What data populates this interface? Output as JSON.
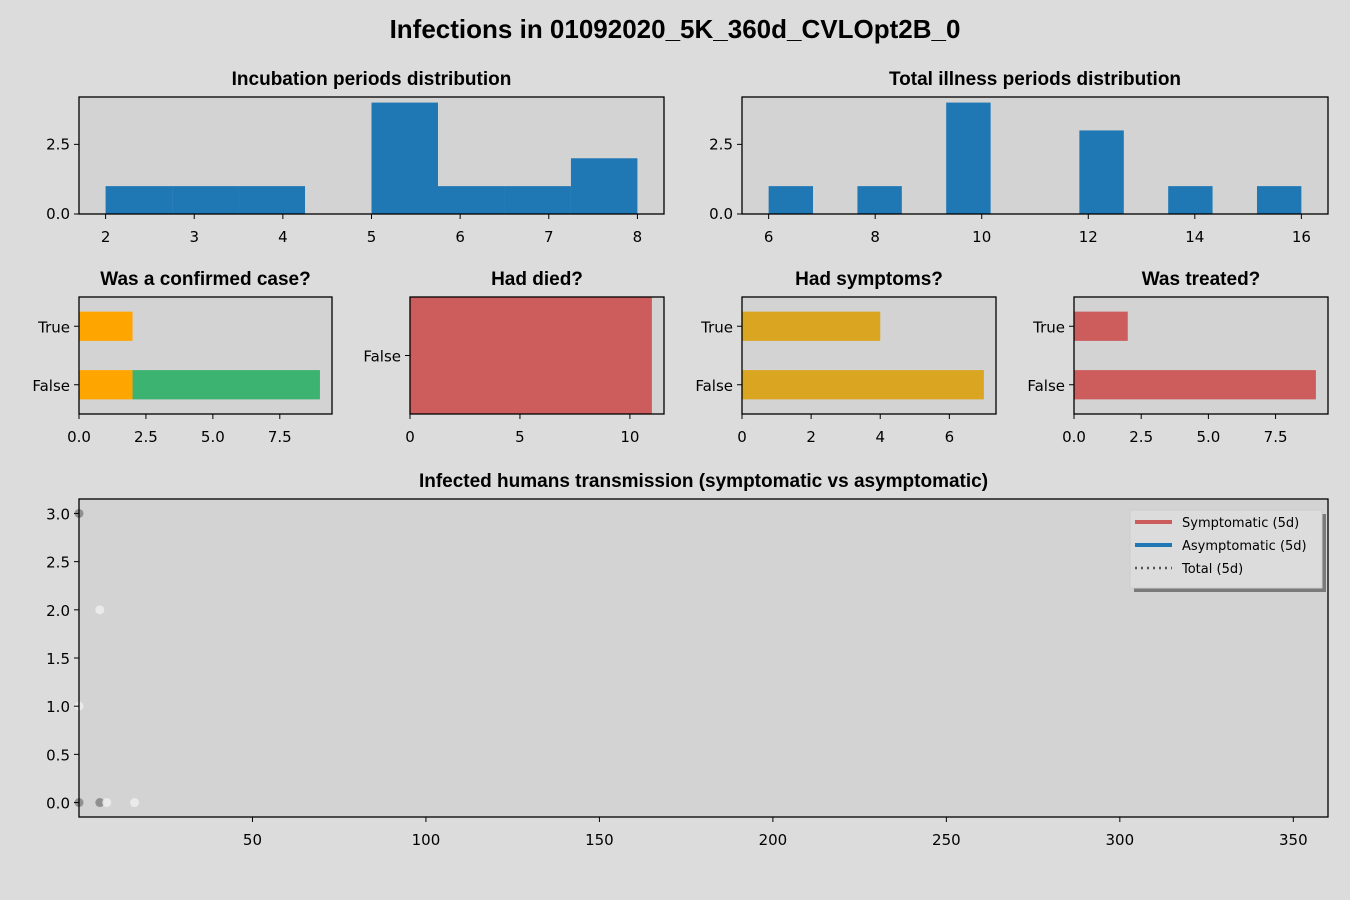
{
  "figure": {
    "suptitle": "Infections in 01092020_5K_360d_CVLOpt2B_0",
    "background": "#dcdcdc",
    "axes_bg": "#d3d3d3"
  },
  "chart_data": [
    {
      "id": "incubation",
      "type": "bar",
      "title": "Incubation periods distribution",
      "xlim": [
        1.7,
        8.3
      ],
      "ylim": [
        0,
        4.2
      ],
      "xticks": [
        2,
        3,
        4,
        5,
        6,
        7,
        8
      ],
      "yticks": [
        0.0,
        2.5
      ],
      "ytick_labels": [
        "0.0",
        "2.5"
      ],
      "color": "#1f77b4",
      "bins": [
        {
          "x0": 2.0,
          "x1": 2.75,
          "count": 1
        },
        {
          "x0": 2.75,
          "x1": 3.5,
          "count": 1
        },
        {
          "x0": 3.5,
          "x1": 4.25,
          "count": 1
        },
        {
          "x0": 4.25,
          "x1": 5.0,
          "count": 0
        },
        {
          "x0": 5.0,
          "x1": 5.75,
          "count": 4
        },
        {
          "x0": 5.75,
          "x1": 6.5,
          "count": 1
        },
        {
          "x0": 6.5,
          "x1": 7.25,
          "count": 1
        },
        {
          "x0": 7.25,
          "x1": 8.0,
          "count": 2
        }
      ]
    },
    {
      "id": "illness",
      "type": "bar",
      "title": "Total illness periods distribution",
      "xlim": [
        5.5,
        16.5
      ],
      "ylim": [
        0,
        4.2
      ],
      "xticks": [
        6,
        8,
        10,
        12,
        14,
        16
      ],
      "yticks": [
        0.0,
        2.5
      ],
      "ytick_labels": [
        "0.0",
        "2.5"
      ],
      "color": "#1f77b4",
      "bins": [
        {
          "x0": 6.0,
          "x1": 6.833,
          "count": 1
        },
        {
          "x0": 7.667,
          "x1": 8.5,
          "count": 1
        },
        {
          "x0": 9.333,
          "x1": 10.167,
          "count": 4
        },
        {
          "x0": 11.833,
          "x1": 12.667,
          "count": 3
        },
        {
          "x0": 13.5,
          "x1": 14.333,
          "count": 1
        },
        {
          "x0": 15.167,
          "x1": 16.0,
          "count": 1
        }
      ]
    },
    {
      "id": "confirmed",
      "type": "bar",
      "orientation": "horizontal",
      "stacked": true,
      "title": "Was a confirmed case?",
      "categories": [
        "True",
        "False"
      ],
      "xlim": [
        0,
        9.45
      ],
      "xticks": [
        0.0,
        2.5,
        5.0,
        7.5
      ],
      "xtick_labels": [
        "0.0",
        "2.5",
        "5.0",
        "7.5"
      ],
      "series": [
        {
          "values": [
            2,
            2
          ],
          "color": "#ffa500"
        },
        {
          "values": [
            0,
            7
          ],
          "color": "#3cb371"
        }
      ]
    },
    {
      "id": "died",
      "type": "bar",
      "orientation": "horizontal",
      "title": "Had died?",
      "categories": [
        "False"
      ],
      "xlim": [
        0,
        11.55
      ],
      "xticks": [
        0,
        5,
        10
      ],
      "xtick_labels": [
        "0",
        "5",
        "10"
      ],
      "series": [
        {
          "values": [
            11
          ],
          "color": "#cd5c5c"
        }
      ]
    },
    {
      "id": "symptoms",
      "type": "bar",
      "orientation": "horizontal",
      "title": "Had symptoms?",
      "categories": [
        "True",
        "False"
      ],
      "xlim": [
        0,
        7.35
      ],
      "xticks": [
        0,
        2,
        4,
        6
      ],
      "xtick_labels": [
        "0",
        "2",
        "4",
        "6"
      ],
      "series": [
        {
          "values": [
            4,
            7
          ],
          "color": "#daa520"
        }
      ]
    },
    {
      "id": "treated",
      "type": "bar",
      "orientation": "horizontal",
      "title": "Was treated?",
      "categories": [
        "True",
        "False"
      ],
      "xlim": [
        0,
        9.45
      ],
      "xticks": [
        0.0,
        2.5,
        5.0,
        7.5
      ],
      "xtick_labels": [
        "0.0",
        "2.5",
        "5.0",
        "7.5"
      ],
      "series": [
        {
          "values": [
            2,
            9
          ],
          "color": "#cd5c5c"
        }
      ]
    },
    {
      "id": "transmission",
      "type": "scatter",
      "title": "Infected humans transmission (symptomatic vs asymptomatic)",
      "xlim": [
        0,
        360
      ],
      "ylim": [
        -0.15,
        3.15
      ],
      "xticks": [
        50,
        100,
        150,
        200,
        250,
        300,
        350
      ],
      "yticks": [
        0.0,
        0.5,
        1.0,
        1.5,
        2.0,
        2.5,
        3.0
      ],
      "ytick_labels": [
        "0.0",
        "0.5",
        "1.0",
        "1.5",
        "2.0",
        "2.5",
        "3.0"
      ],
      "points": [
        {
          "x": 0,
          "y": 3,
          "color": "#808080"
        },
        {
          "x": 0,
          "y": 0,
          "color": "#808080"
        },
        {
          "x": 6,
          "y": 0,
          "color": "#808080"
        },
        {
          "x": 6,
          "y": 2,
          "color": "#f0f0f0"
        },
        {
          "x": 0,
          "y": 1,
          "color": "#f0f0f0"
        },
        {
          "x": 8,
          "y": 0,
          "color": "#f0f0f0"
        },
        {
          "x": 16,
          "y": 0,
          "color": "#f0f0f0"
        }
      ],
      "legend": {
        "position": "top-right",
        "entries": [
          {
            "label": "Symptomatic (5d)",
            "color": "#cd5c5c",
            "style": "solid"
          },
          {
            "label": "Asymptomatic (5d)",
            "color": "#1f77b4",
            "style": "solid"
          },
          {
            "label": "Total (5d)",
            "color": "#555555",
            "style": "dotted"
          }
        ]
      }
    }
  ]
}
